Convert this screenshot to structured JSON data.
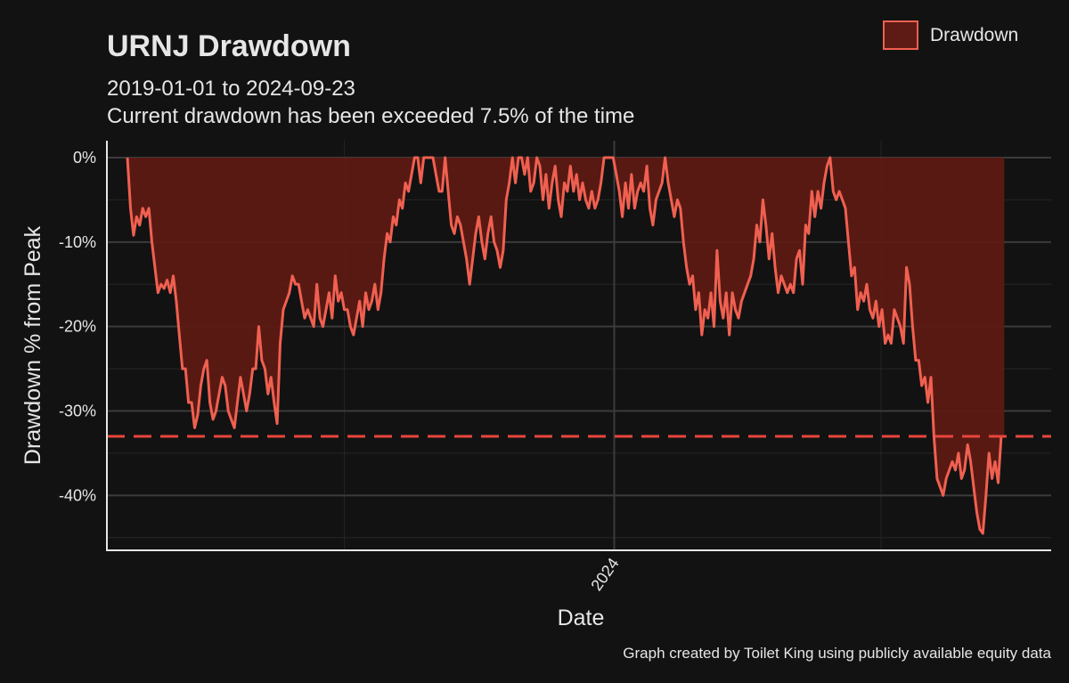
{
  "chart_data": {
    "type": "area",
    "title": "URNJ Drawdown",
    "subtitle_lines": [
      "2019-01-01 to 2024-09-23",
      "Current drawdown has been exceeded 7.5% of the time"
    ],
    "xlabel": "Date",
    "ylabel": "Drawdown % from Peak",
    "caption": "Graph created by Toilet King using publicly available equity data",
    "x_start": "2023-02-03",
    "x_end": "2024-09-23",
    "xlim": [
      "2023-01-20",
      "2024-10-25"
    ],
    "x_ticks": [
      {
        "date": "2024-01-01",
        "label": "2024"
      }
    ],
    "ylim": [
      -46.5,
      2
    ],
    "y_ticks": [
      {
        "value": 0,
        "label": "0%"
      },
      {
        "value": -10,
        "label": "-10%"
      },
      {
        "value": -20,
        "label": "-20%"
      },
      {
        "value": -30,
        "label": "-30%"
      },
      {
        "value": -40,
        "label": "-40%"
      }
    ],
    "reference_line": {
      "value": -33.0,
      "style": "dashed",
      "color": "#e8453c"
    },
    "series": [
      {
        "name": "Drawdown",
        "color": "#f06050",
        "fill": "#5e1a14",
        "values": [
          0,
          -6,
          -9.2,
          -7,
          -8,
          -6,
          -7,
          -6,
          -10,
          -13,
          -16,
          -15,
          -15.5,
          -14.5,
          -16,
          -14,
          -17,
          -21,
          -25,
          -25,
          -29,
          -29,
          -32,
          -30.5,
          -27,
          -25,
          -24,
          -29,
          -31,
          -30,
          -28,
          -26,
          -27,
          -30,
          -31,
          -32,
          -29,
          -26,
          -28,
          -30,
          -28,
          -25,
          -25,
          -20,
          -24,
          -25,
          -28,
          -26,
          -29,
          -31.5,
          -22,
          -18,
          -17,
          -16,
          -14,
          -15,
          -15,
          -17,
          -19,
          -18,
          -19,
          -20,
          -15,
          -19,
          -20,
          -18,
          -16,
          -19,
          -14,
          -17,
          -16,
          -18,
          -18,
          -20,
          -21,
          -19,
          -17,
          -20,
          -16,
          -18,
          -17,
          -15,
          -18,
          -16,
          -12,
          -9,
          -10,
          -7,
          -8,
          -5,
          -6,
          -3,
          -4,
          -2,
          0,
          0,
          -3,
          0,
          0,
          0,
          0,
          -2,
          -4,
          -4,
          0,
          -4,
          -8,
          -9,
          -7,
          -8,
          -10,
          -12,
          -15,
          -12,
          -9,
          -7,
          -10,
          -12,
          -9,
          -7,
          -10,
          -11,
          -13,
          -11,
          -5,
          -3,
          0,
          -3,
          0,
          0,
          -2,
          0,
          -4,
          -3,
          0,
          -1,
          -5,
          -2,
          -6,
          -3,
          -1,
          -5,
          -7,
          -3,
          -4,
          -1,
          -4,
          -2,
          -5,
          -3,
          -5,
          -6,
          -4,
          -6,
          -5,
          -3,
          0,
          0,
          0,
          0,
          -2,
          -4,
          -7,
          -3,
          -6,
          -2,
          -6,
          -4,
          -3,
          -4,
          -1,
          -6,
          -8,
          -5,
          -4,
          -3,
          0,
          -3,
          -5,
          -7,
          -5,
          -6,
          -10,
          -13,
          -15,
          -14,
          -18,
          -16,
          -21,
          -18,
          -19,
          -16,
          -20,
          -11,
          -17,
          -19,
          -16,
          -21,
          -16,
          -18,
          -19,
          -17,
          -16,
          -15,
          -14,
          -12,
          -8,
          -10,
          -5,
          -8,
          -12,
          -9,
          -13,
          -16,
          -14,
          -15,
          -16,
          -15,
          -16,
          -12,
          -11,
          -15,
          -8,
          -9,
          -4,
          -7,
          -4,
          -6,
          -3,
          -1,
          0,
          -4,
          -5,
          -4,
          -5,
          -6,
          -10,
          -14,
          -13,
          -18,
          -16,
          -17,
          -15,
          -18,
          -19,
          -17,
          -20,
          -18,
          -22,
          -21,
          -22,
          -18,
          -19,
          -20,
          -22,
          -13,
          -15,
          -20,
          -24,
          -24,
          -27,
          -26,
          -29,
          -26,
          -33,
          -38,
          -39,
          -40,
          -38,
          -37,
          -36,
          -37,
          -35,
          -38,
          -37,
          -34,
          -36,
          -39,
          -42,
          -44,
          -44.5,
          -40,
          -35,
          -38,
          -36,
          -38.5,
          -33,
          -33
        ]
      }
    ],
    "legend": {
      "placement": "top-right",
      "label": "Drawdown"
    },
    "grid": true
  }
}
